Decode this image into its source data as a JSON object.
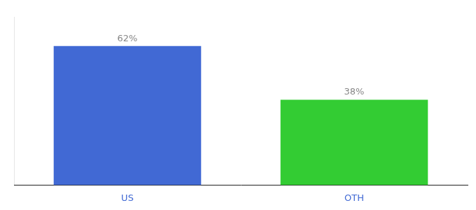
{
  "chart_data": {
    "type": "bar",
    "categories": [
      "US",
      "OTH"
    ],
    "values": [
      62,
      38
    ],
    "value_labels": [
      "62%",
      "38%"
    ],
    "colors": [
      "#4169d4",
      "#33cc33"
    ],
    "ylim": [
      0,
      75
    ],
    "grid": false,
    "data_labels": true,
    "tick_labels": "x"
  }
}
